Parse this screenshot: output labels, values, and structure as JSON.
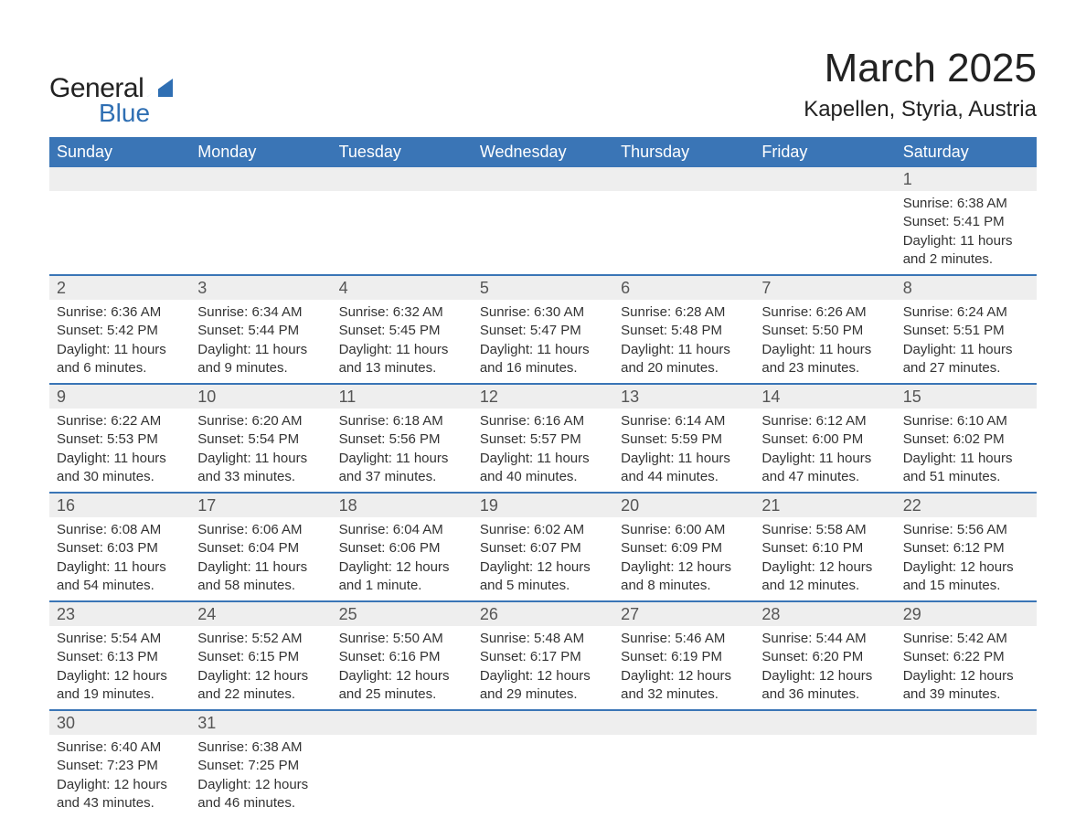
{
  "logo": {
    "general": "General",
    "blue": "Blue",
    "triangle_color": "#2f6fb3"
  },
  "title": "March 2025",
  "location": "Kapellen, Styria, Austria",
  "colors": {
    "header_bg": "#3a75b6",
    "header_text": "#ffffff",
    "daynum_bg": "#eeeeee",
    "rule": "#3a75b6"
  },
  "weekdays": [
    "Sunday",
    "Monday",
    "Tuesday",
    "Wednesday",
    "Thursday",
    "Friday",
    "Saturday"
  ],
  "weeks": [
    [
      null,
      null,
      null,
      null,
      null,
      null,
      {
        "n": "1",
        "sr": "Sunrise: 6:38 AM",
        "ss": "Sunset: 5:41 PM",
        "d1": "Daylight: 11 hours",
        "d2": "and 2 minutes."
      }
    ],
    [
      {
        "n": "2",
        "sr": "Sunrise: 6:36 AM",
        "ss": "Sunset: 5:42 PM",
        "d1": "Daylight: 11 hours",
        "d2": "and 6 minutes."
      },
      {
        "n": "3",
        "sr": "Sunrise: 6:34 AM",
        "ss": "Sunset: 5:44 PM",
        "d1": "Daylight: 11 hours",
        "d2": "and 9 minutes."
      },
      {
        "n": "4",
        "sr": "Sunrise: 6:32 AM",
        "ss": "Sunset: 5:45 PM",
        "d1": "Daylight: 11 hours",
        "d2": "and 13 minutes."
      },
      {
        "n": "5",
        "sr": "Sunrise: 6:30 AM",
        "ss": "Sunset: 5:47 PM",
        "d1": "Daylight: 11 hours",
        "d2": "and 16 minutes."
      },
      {
        "n": "6",
        "sr": "Sunrise: 6:28 AM",
        "ss": "Sunset: 5:48 PM",
        "d1": "Daylight: 11 hours",
        "d2": "and 20 minutes."
      },
      {
        "n": "7",
        "sr": "Sunrise: 6:26 AM",
        "ss": "Sunset: 5:50 PM",
        "d1": "Daylight: 11 hours",
        "d2": "and 23 minutes."
      },
      {
        "n": "8",
        "sr": "Sunrise: 6:24 AM",
        "ss": "Sunset: 5:51 PM",
        "d1": "Daylight: 11 hours",
        "d2": "and 27 minutes."
      }
    ],
    [
      {
        "n": "9",
        "sr": "Sunrise: 6:22 AM",
        "ss": "Sunset: 5:53 PM",
        "d1": "Daylight: 11 hours",
        "d2": "and 30 minutes."
      },
      {
        "n": "10",
        "sr": "Sunrise: 6:20 AM",
        "ss": "Sunset: 5:54 PM",
        "d1": "Daylight: 11 hours",
        "d2": "and 33 minutes."
      },
      {
        "n": "11",
        "sr": "Sunrise: 6:18 AM",
        "ss": "Sunset: 5:56 PM",
        "d1": "Daylight: 11 hours",
        "d2": "and 37 minutes."
      },
      {
        "n": "12",
        "sr": "Sunrise: 6:16 AM",
        "ss": "Sunset: 5:57 PM",
        "d1": "Daylight: 11 hours",
        "d2": "and 40 minutes."
      },
      {
        "n": "13",
        "sr": "Sunrise: 6:14 AM",
        "ss": "Sunset: 5:59 PM",
        "d1": "Daylight: 11 hours",
        "d2": "and 44 minutes."
      },
      {
        "n": "14",
        "sr": "Sunrise: 6:12 AM",
        "ss": "Sunset: 6:00 PM",
        "d1": "Daylight: 11 hours",
        "d2": "and 47 minutes."
      },
      {
        "n": "15",
        "sr": "Sunrise: 6:10 AM",
        "ss": "Sunset: 6:02 PM",
        "d1": "Daylight: 11 hours",
        "d2": "and 51 minutes."
      }
    ],
    [
      {
        "n": "16",
        "sr": "Sunrise: 6:08 AM",
        "ss": "Sunset: 6:03 PM",
        "d1": "Daylight: 11 hours",
        "d2": "and 54 minutes."
      },
      {
        "n": "17",
        "sr": "Sunrise: 6:06 AM",
        "ss": "Sunset: 6:04 PM",
        "d1": "Daylight: 11 hours",
        "d2": "and 58 minutes."
      },
      {
        "n": "18",
        "sr": "Sunrise: 6:04 AM",
        "ss": "Sunset: 6:06 PM",
        "d1": "Daylight: 12 hours",
        "d2": "and 1 minute."
      },
      {
        "n": "19",
        "sr": "Sunrise: 6:02 AM",
        "ss": "Sunset: 6:07 PM",
        "d1": "Daylight: 12 hours",
        "d2": "and 5 minutes."
      },
      {
        "n": "20",
        "sr": "Sunrise: 6:00 AM",
        "ss": "Sunset: 6:09 PM",
        "d1": "Daylight: 12 hours",
        "d2": "and 8 minutes."
      },
      {
        "n": "21",
        "sr": "Sunrise: 5:58 AM",
        "ss": "Sunset: 6:10 PM",
        "d1": "Daylight: 12 hours",
        "d2": "and 12 minutes."
      },
      {
        "n": "22",
        "sr": "Sunrise: 5:56 AM",
        "ss": "Sunset: 6:12 PM",
        "d1": "Daylight: 12 hours",
        "d2": "and 15 minutes."
      }
    ],
    [
      {
        "n": "23",
        "sr": "Sunrise: 5:54 AM",
        "ss": "Sunset: 6:13 PM",
        "d1": "Daylight: 12 hours",
        "d2": "and 19 minutes."
      },
      {
        "n": "24",
        "sr": "Sunrise: 5:52 AM",
        "ss": "Sunset: 6:15 PM",
        "d1": "Daylight: 12 hours",
        "d2": "and 22 minutes."
      },
      {
        "n": "25",
        "sr": "Sunrise: 5:50 AM",
        "ss": "Sunset: 6:16 PM",
        "d1": "Daylight: 12 hours",
        "d2": "and 25 minutes."
      },
      {
        "n": "26",
        "sr": "Sunrise: 5:48 AM",
        "ss": "Sunset: 6:17 PM",
        "d1": "Daylight: 12 hours",
        "d2": "and 29 minutes."
      },
      {
        "n": "27",
        "sr": "Sunrise: 5:46 AM",
        "ss": "Sunset: 6:19 PM",
        "d1": "Daylight: 12 hours",
        "d2": "and 32 minutes."
      },
      {
        "n": "28",
        "sr": "Sunrise: 5:44 AM",
        "ss": "Sunset: 6:20 PM",
        "d1": "Daylight: 12 hours",
        "d2": "and 36 minutes."
      },
      {
        "n": "29",
        "sr": "Sunrise: 5:42 AM",
        "ss": "Sunset: 6:22 PM",
        "d1": "Daylight: 12 hours",
        "d2": "and 39 minutes."
      }
    ],
    [
      {
        "n": "30",
        "sr": "Sunrise: 6:40 AM",
        "ss": "Sunset: 7:23 PM",
        "d1": "Daylight: 12 hours",
        "d2": "and 43 minutes."
      },
      {
        "n": "31",
        "sr": "Sunrise: 6:38 AM",
        "ss": "Sunset: 7:25 PM",
        "d1": "Daylight: 12 hours",
        "d2": "and 46 minutes."
      },
      null,
      null,
      null,
      null,
      null
    ]
  ]
}
